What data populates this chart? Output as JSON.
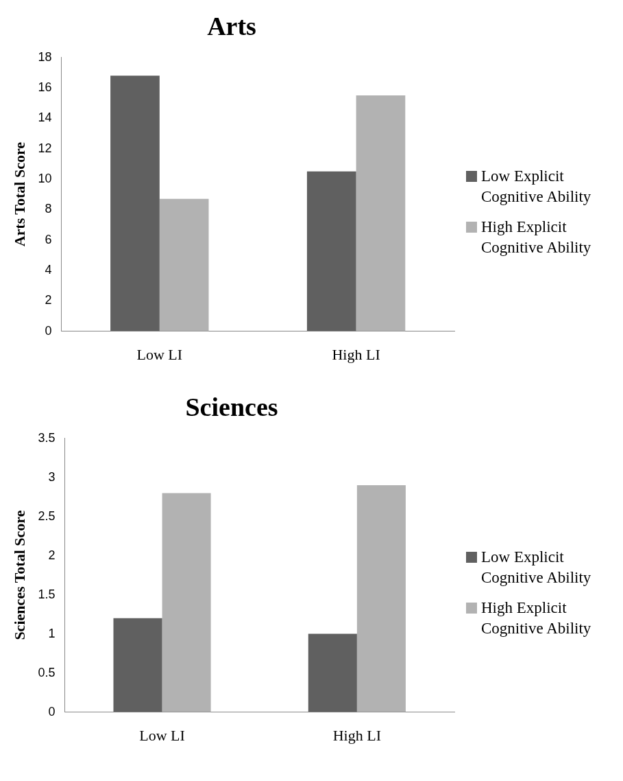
{
  "chart_data": [
    {
      "type": "bar",
      "title": "Arts",
      "ylabel": "Arts Total Score",
      "categories": [
        "Low LI",
        "High LI"
      ],
      "series": [
        {
          "name": "Low Explicit Cognitive Ability",
          "color": "#606060",
          "values": [
            16.8,
            10.5
          ]
        },
        {
          "name": "High Explicit Cognitive Ability",
          "color": "#b2b2b2",
          "values": [
            8.7,
            15.5
          ]
        }
      ],
      "ylim": [
        0,
        18
      ],
      "yticks": [
        0,
        2,
        4,
        6,
        8,
        10,
        12,
        14,
        16,
        18
      ],
      "legend": "right"
    },
    {
      "type": "bar",
      "title": "Sciences",
      "ylabel": "Sciences Total Score",
      "categories": [
        "Low LI",
        "High LI"
      ],
      "series": [
        {
          "name": "Low Explicit Cognitive Ability",
          "color": "#606060",
          "values": [
            1.2,
            1.0
          ]
        },
        {
          "name": "High Explicit Cognitive Ability",
          "color": "#b2b2b2",
          "values": [
            2.8,
            2.9
          ]
        }
      ],
      "ylim": [
        0,
        3.5
      ],
      "yticks": [
        0,
        0.5,
        1,
        1.5,
        2,
        2.5,
        3,
        3.5
      ],
      "legend": "right"
    }
  ]
}
